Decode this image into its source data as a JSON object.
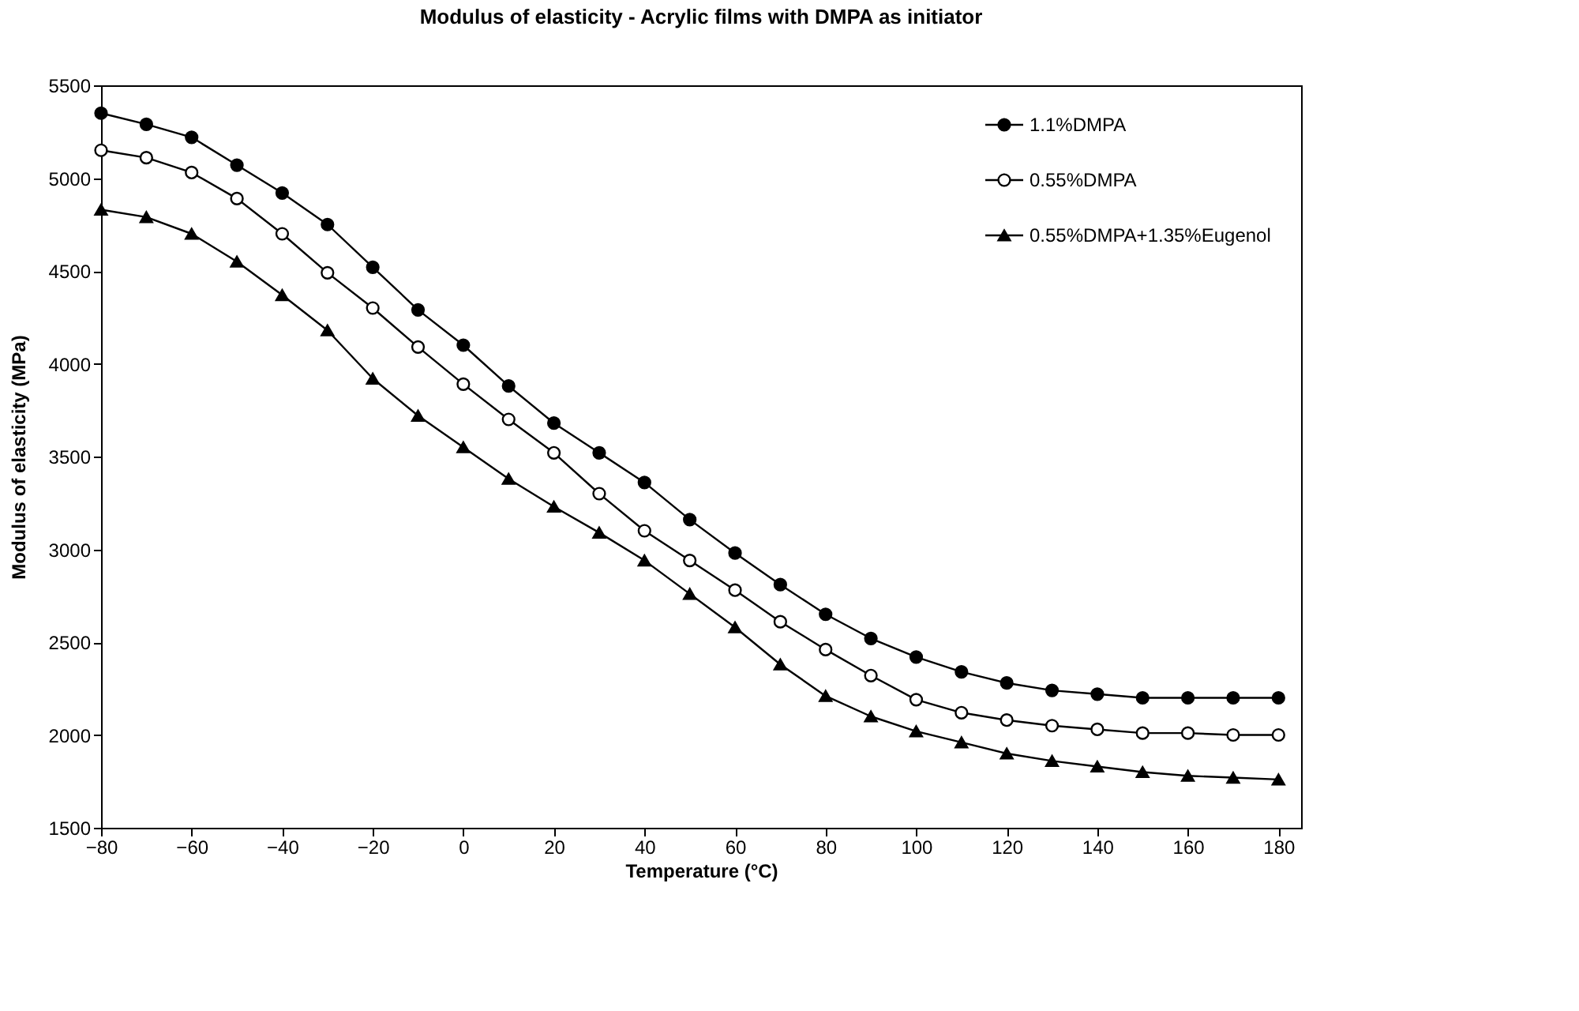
{
  "chart_data": {
    "type": "line",
    "title": "Modulus of elasticity - Acrylic films with DMPA as initiator",
    "xlabel": "Temperature (°C)",
    "ylabel": "Modulus of elasticity (MPa)",
    "x": [
      -80,
      -70,
      -60,
      -50,
      -40,
      -30,
      -20,
      -10,
      0,
      10,
      20,
      30,
      40,
      50,
      60,
      70,
      80,
      90,
      100,
      110,
      120,
      130,
      140,
      150,
      160,
      170,
      180
    ],
    "series": [
      {
        "name": "1.1%DMPA",
        "color": "#000000",
        "marker": "circle",
        "values": [
          5350,
          5290,
          5220,
          5070,
          4920,
          4750,
          4520,
          4290,
          4100,
          3880,
          3680,
          3520,
          3360,
          3160,
          2980,
          2810,
          2650,
          2520,
          2420,
          2340,
          2280,
          2240,
          2220,
          2200,
          2200,
          2200,
          2200
        ]
      },
      {
        "name": "0.55%DMPA",
        "color": "#000000",
        "marker": "circle",
        "values": [
          5150,
          5110,
          5030,
          4890,
          4700,
          4490,
          4300,
          4090,
          3890,
          3700,
          3520,
          3300,
          3100,
          2940,
          2780,
          2610,
          2460,
          2320,
          2190,
          2120,
          2080,
          2050,
          2030,
          2010,
          2010,
          2000,
          2000
        ]
      },
      {
        "name": "0.55%DMPA+1.35%Eugenol",
        "color": "#000000",
        "marker": "triangle",
        "values": [
          4830,
          4790,
          4700,
          4550,
          4370,
          4180,
          3920,
          3720,
          3550,
          3380,
          3230,
          3090,
          2940,
          2760,
          2580,
          2380,
          2210,
          2100,
          2020,
          1960,
          1900,
          1860,
          1830,
          1800,
          1780,
          1770,
          1760
        ]
      }
    ],
    "xlim": [
      -80,
      185
    ],
    "xticks": [
      -80,
      -60,
      -40,
      -20,
      0,
      20,
      40,
      60,
      80,
      100,
      120,
      140,
      160,
      180
    ],
    "ylim": [
      1500,
      5500
    ],
    "yticks": [
      {
        "value": 1500,
        "label": "1500"
      },
      {
        "value": 2000,
        "label": "2000"
      },
      {
        "value": 2500,
        "label": "2500"
      },
      {
        "value": 3000,
        "label": "3000"
      },
      {
        "value": 3500,
        "label": "3500"
      },
      {
        "value": 4000,
        "label": "4000"
      },
      {
        "value": 4500,
        "label": "4500"
      },
      {
        "value": 5000,
        "label": "5000"
      },
      {
        "value": 5500,
        "label": "5500"
      }
    ],
    "grid": false,
    "legend": "top right",
    "line_style": "solid"
  }
}
